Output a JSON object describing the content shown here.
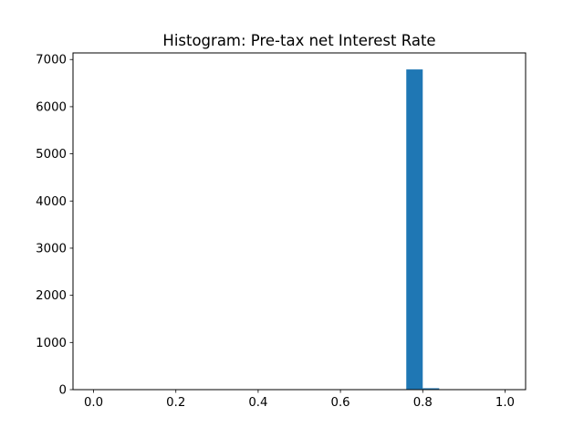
{
  "chart_data": {
    "type": "bar",
    "title": "Histogram:  Pre-tax net Interest Rate",
    "xlabel": "",
    "ylabel": "",
    "xlim": [
      -0.05,
      1.05
    ],
    "ylim": [
      0,
      7140
    ],
    "x_ticks": [
      0.0,
      0.2,
      0.4,
      0.6,
      0.8,
      1.0
    ],
    "x_tick_labels": [
      "0.0",
      "0.2",
      "0.4",
      "0.6",
      "0.8",
      "1.0"
    ],
    "y_ticks": [
      0,
      1000,
      2000,
      3000,
      4000,
      5000,
      6000,
      7000
    ],
    "y_tick_labels": [
      "0",
      "1000",
      "2000",
      "3000",
      "4000",
      "5000",
      "6000",
      "7000"
    ],
    "grid": false,
    "bar_color": "#1f77b4",
    "bins": [
      {
        "x_start": 0.0,
        "x_end": 0.04,
        "count": 1
      },
      {
        "x_start": 0.04,
        "x_end": 0.08,
        "count": 0
      },
      {
        "x_start": 0.08,
        "x_end": 0.12,
        "count": 0
      },
      {
        "x_start": 0.12,
        "x_end": 0.16,
        "count": 0
      },
      {
        "x_start": 0.16,
        "x_end": 0.2,
        "count": 0
      },
      {
        "x_start": 0.2,
        "x_end": 0.24,
        "count": 0
      },
      {
        "x_start": 0.24,
        "x_end": 0.28,
        "count": 0
      },
      {
        "x_start": 0.28,
        "x_end": 0.32,
        "count": 0
      },
      {
        "x_start": 0.32,
        "x_end": 0.36,
        "count": 0
      },
      {
        "x_start": 0.36,
        "x_end": 0.4,
        "count": 0
      },
      {
        "x_start": 0.4,
        "x_end": 0.44,
        "count": 0
      },
      {
        "x_start": 0.44,
        "x_end": 0.48,
        "count": 0
      },
      {
        "x_start": 0.48,
        "x_end": 0.52,
        "count": 0
      },
      {
        "x_start": 0.52,
        "x_end": 0.56,
        "count": 0
      },
      {
        "x_start": 0.56,
        "x_end": 0.6,
        "count": 0
      },
      {
        "x_start": 0.6,
        "x_end": 0.64,
        "count": 0
      },
      {
        "x_start": 0.64,
        "x_end": 0.68,
        "count": 0
      },
      {
        "x_start": 0.68,
        "x_end": 0.72,
        "count": 0
      },
      {
        "x_start": 0.72,
        "x_end": 0.76,
        "count": 2
      },
      {
        "x_start": 0.76,
        "x_end": 0.8,
        "count": 6790
      },
      {
        "x_start": 0.8,
        "x_end": 0.84,
        "count": 30
      },
      {
        "x_start": 0.84,
        "x_end": 0.88,
        "count": 2
      },
      {
        "x_start": 0.88,
        "x_end": 0.92,
        "count": 0
      },
      {
        "x_start": 0.92,
        "x_end": 0.96,
        "count": 0
      },
      {
        "x_start": 0.96,
        "x_end": 1.0,
        "count": 1
      }
    ]
  }
}
